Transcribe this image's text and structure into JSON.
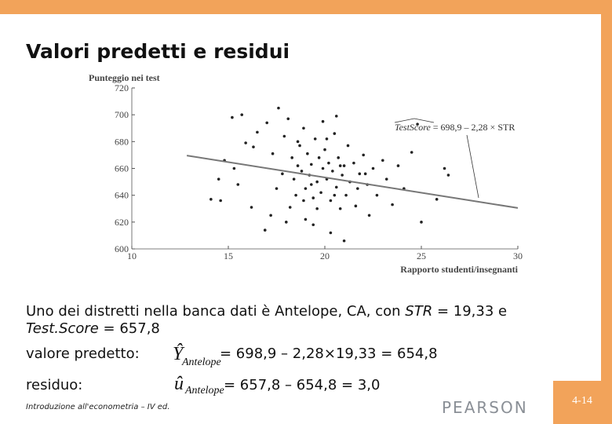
{
  "chart_data": {
    "type": "scatter",
    "y_label": "Punteggio nei test",
    "x_label": "Rapporto studenti/insegnanti",
    "annotation_lhs": "TestScore",
    "annotation_rhs": " = 698,9 – 2,28 × STR",
    "color": "#222222",
    "x": [
      15.2,
      15.7,
      16.5,
      15.9,
      16.3,
      14.8,
      14.1,
      15.3,
      15.5,
      16.2,
      17.0,
      17.3,
      17.5,
      17.8,
      17.2,
      16.9,
      17.9,
      18.1,
      18.3,
      18.4,
      18.5,
      18.6,
      18.2,
      18.7,
      18.9,
      18.8,
      19.0,
      19.1,
      19.2,
      19.3,
      19.4,
      19.5,
      19.6,
      19.7,
      19.8,
      19.9,
      20.0,
      20.1,
      20.2,
      20.3,
      20.4,
      20.5,
      20.6,
      20.7,
      20.8,
      20.9,
      21.0,
      21.1,
      21.2,
      21.3,
      21.5,
      21.6,
      21.8,
      22.0,
      22.2,
      22.3,
      22.5,
      22.7,
      23.0,
      23.2,
      23.5,
      23.8,
      24.1,
      24.5,
      25.8,
      26.2,
      25.0,
      21.0,
      20.3,
      19.4,
      19.0,
      18.0,
      20.6,
      19.9,
      17.6,
      24.8,
      18.6,
      20.1,
      19.3,
      20.8,
      22.1,
      19.6,
      20.5,
      18.9,
      21.7,
      14.5,
      14.6,
      26.4
    ],
    "y": [
      698,
      700,
      687,
      679,
      676,
      666,
      637,
      660,
      648,
      631,
      694,
      671,
      645,
      656,
      625,
      614,
      684,
      697,
      668,
      652,
      640,
      662,
      631,
      677,
      690,
      658,
      645,
      671,
      655,
      663,
      638,
      682,
      650,
      668,
      642,
      660,
      674,
      652,
      664,
      636,
      658,
      686,
      646,
      668,
      630,
      655,
      662,
      640,
      677,
      650,
      664,
      632,
      656,
      670,
      648,
      625,
      660,
      640,
      666,
      652,
      633,
      662,
      645,
      672,
      637,
      660,
      620,
      606,
      612,
      618,
      622,
      620,
      699,
      695,
      705,
      693,
      680,
      682,
      648,
      662,
      656,
      630,
      640,
      636,
      645,
      652,
      636,
      655
    ],
    "xlim": [
      10,
      30
    ],
    "ylim": [
      600,
      720
    ],
    "xticks": [
      10,
      15,
      20,
      25,
      30
    ],
    "yticks": [
      600,
      620,
      640,
      660,
      680,
      700,
      720
    ],
    "fit_line": {
      "x": [
        12.85,
        30
      ],
      "y": [
        669.6,
        630.5
      ],
      "color": "#777777"
    }
  },
  "slide": {
    "title": "Valori predetti e residui",
    "paragraph": [
      "Uno dei distretti nella banca dati è Antelope, CA, con ",
      "STR",
      " = 19,33 e",
      "Test.Score",
      " = 657,8"
    ],
    "predicted_label": "valore predetto:",
    "predicted_symbol": "Ŷ",
    "predicted_subscript": "Antelope",
    "predicted_expression": "= 698,9 – 2,28×19,33 = 654,8",
    "residual_label": "residuo:",
    "residual_symbol": "û",
    "residual_subscript": "Antelope",
    "residual_expression": "= 657,8 – 654,8 = 3,0",
    "footer": "Introduzione all'econometria – IV ed.",
    "logo": "PEARSON",
    "page": "4-14"
  }
}
